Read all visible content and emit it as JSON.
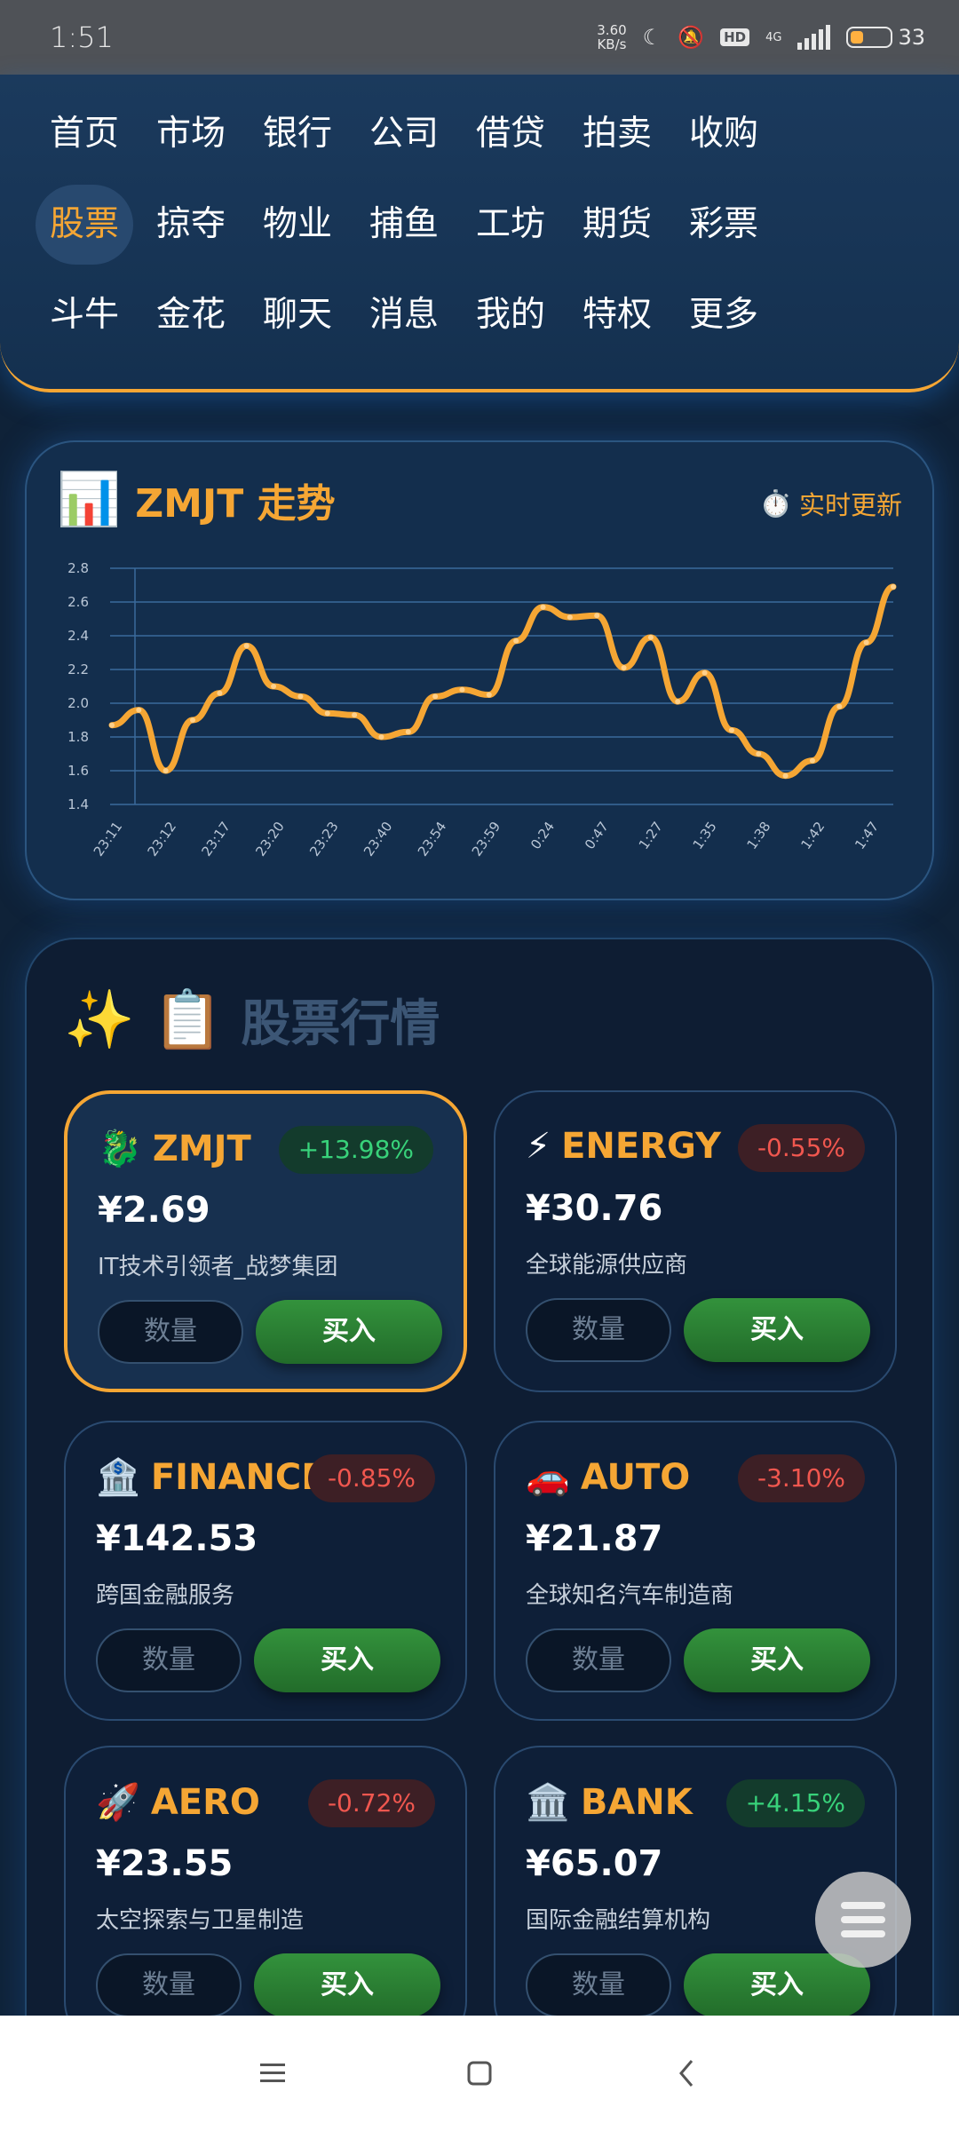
{
  "status": {
    "time": "1:51",
    "net_speed_value": "3.60",
    "net_speed_unit": "KB/s",
    "hd": "HD",
    "network": "4G",
    "battery": "33",
    "battery_level": 0.33
  },
  "nav": {
    "active_index": 7,
    "items": [
      {
        "label": "首页"
      },
      {
        "label": "市场"
      },
      {
        "label": "银行"
      },
      {
        "label": "公司"
      },
      {
        "label": "借贷"
      },
      {
        "label": "拍卖"
      },
      {
        "label": "收购"
      },
      {
        "label": "股票"
      },
      {
        "label": "掠夺"
      },
      {
        "label": "物业"
      },
      {
        "label": "捕鱼"
      },
      {
        "label": "工坊"
      },
      {
        "label": "期货"
      },
      {
        "label": "彩票"
      },
      {
        "label": "斗牛"
      },
      {
        "label": "金花"
      },
      {
        "label": "聊天"
      },
      {
        "label": "消息"
      },
      {
        "label": "我的"
      },
      {
        "label": "特权"
      },
      {
        "label": "更多"
      }
    ]
  },
  "chart": {
    "icon": "📊",
    "title": "ZMJT 走势",
    "live_icon": "⏱️",
    "live_label": "实时更新"
  },
  "chart_data": {
    "type": "line",
    "title": "ZMJT 走势",
    "ylim": [
      1.4,
      2.8
    ],
    "yticks": [
      "1.4",
      "1.6",
      "1.8",
      "2.0",
      "2.2",
      "2.4",
      "2.6",
      "2.8"
    ],
    "xticks": [
      "23:11",
      "23:12",
      "23:17",
      "23:20",
      "23:23",
      "23:40",
      "23:54",
      "23:59",
      "0:24",
      "0:47",
      "1:27",
      "1:35",
      "1:38",
      "1:42",
      "1:47"
    ],
    "color": "#f5a634",
    "grid": true,
    "series": [
      {
        "values": [
          1.87,
          1.96,
          1.6,
          1.9,
          2.06,
          2.34,
          2.1,
          2.04,
          1.94,
          1.93,
          1.8,
          1.83,
          2.04,
          2.08,
          2.05,
          2.37,
          2.57,
          2.51,
          2.52,
          2.21,
          2.39,
          2.01,
          2.18,
          1.84,
          1.7,
          1.57,
          1.66,
          1.98,
          2.36,
          2.69
        ]
      }
    ]
  },
  "market": {
    "icon1": "✨",
    "icon2": "📋",
    "title": "股票行情",
    "qty_placeholder": "数量",
    "buy_label": "买入",
    "stocks": [
      {
        "emoji": "🐉",
        "symbol": "ZMJT",
        "change": "+13.98%",
        "dir": "up",
        "price": "¥2.69",
        "desc": "IT技术引领者_战梦集团"
      },
      {
        "emoji": "⚡",
        "symbol": "ENERGY",
        "change": "-0.55%",
        "dir": "down",
        "price": "¥30.76",
        "desc": "全球能源供应商"
      },
      {
        "emoji": "🏦",
        "symbol": "FINANCE",
        "change": "-0.85%",
        "dir": "down",
        "price": "¥142.53",
        "desc": "跨国金融服务"
      },
      {
        "emoji": "🚗",
        "symbol": "AUTO",
        "change": "-3.10%",
        "dir": "down",
        "price": "¥21.87",
        "desc": "全球知名汽车制造商"
      },
      {
        "emoji": "🚀",
        "symbol": "AERO",
        "change": "-0.72%",
        "dir": "down",
        "price": "¥23.55",
        "desc": "太空探索与卫星制造"
      },
      {
        "emoji": "🏛️",
        "symbol": "BANK",
        "change": "+4.15%",
        "dir": "up",
        "price": "¥65.07",
        "desc": "国际金融结算机构"
      }
    ]
  }
}
